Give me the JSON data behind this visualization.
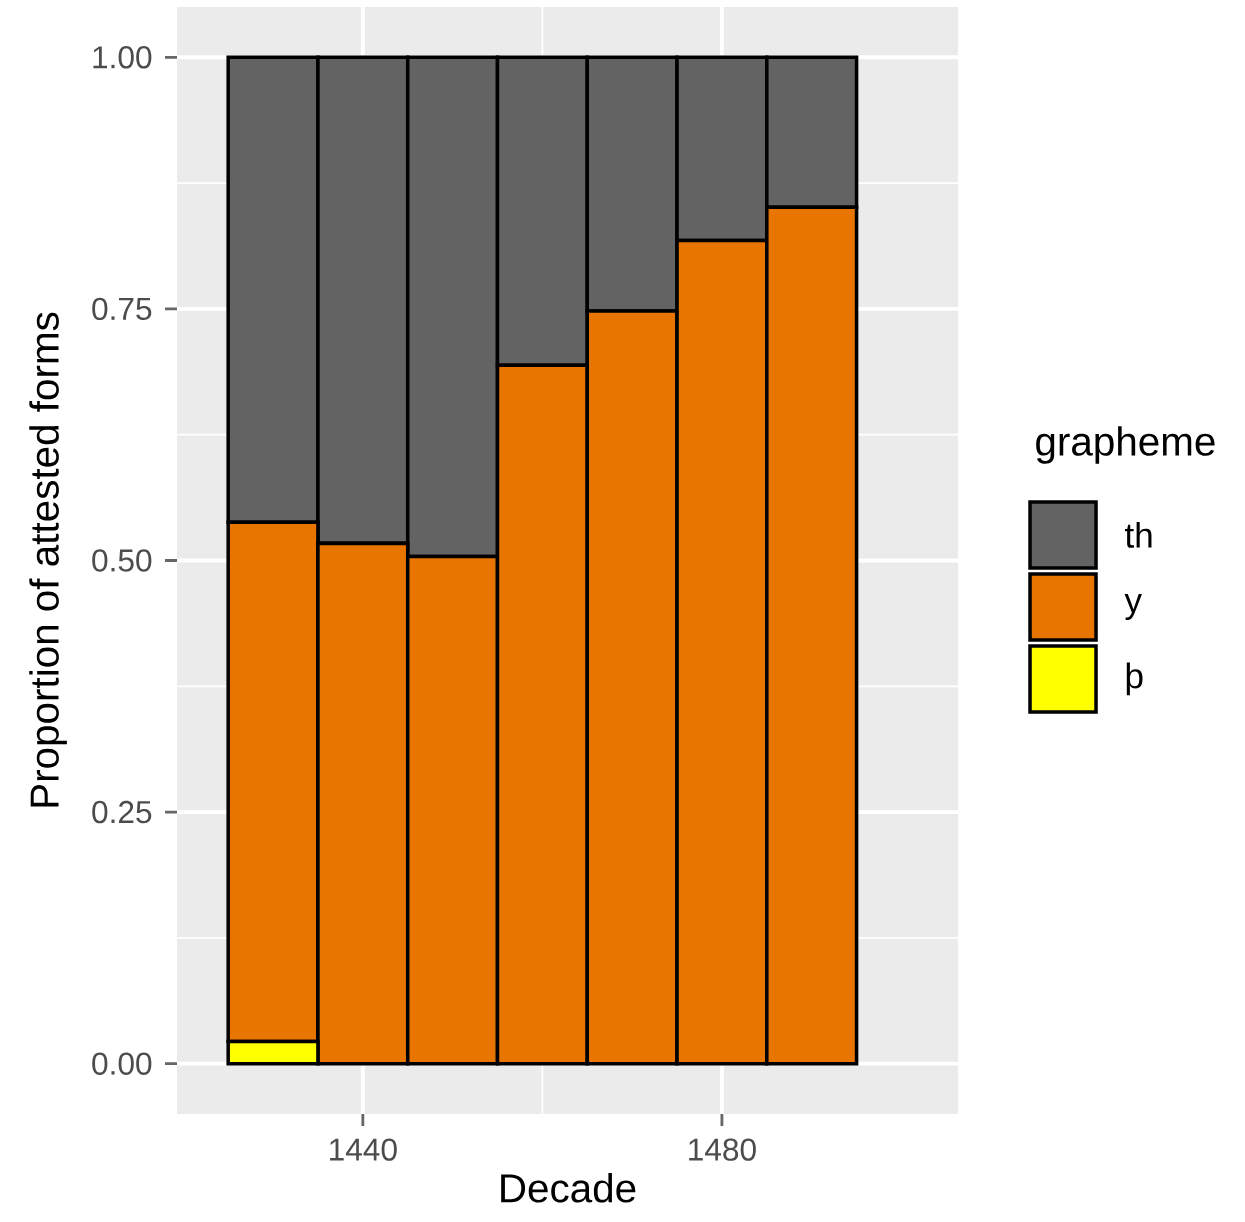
{
  "chart_data": {
    "type": "bar",
    "stacked": true,
    "xlabel": "Decade",
    "ylabel": "Proportion of attested forms",
    "legend_title": "grapheme",
    "legend": "right",
    "grid": true,
    "x": [
      1430,
      1440,
      1450,
      1460,
      1470,
      1480,
      1490
    ],
    "xlim": [
      1419.3,
      1506.3
    ],
    "xticks": [
      1440,
      1480
    ],
    "ylim": [
      -0.05,
      1.05
    ],
    "yticks": [
      {
        "value": 0,
        "label": "0.00"
      },
      {
        "value": 0.25,
        "label": "0.25"
      },
      {
        "value": 0.5,
        "label": "0.50"
      },
      {
        "value": 0.75,
        "label": "0.75"
      },
      {
        "value": 1,
        "label": "1.00"
      }
    ],
    "series": [
      {
        "name": "þ",
        "color": "#ffff00",
        "values": [
          0.022,
          null,
          null,
          null,
          null,
          null,
          null
        ]
      },
      {
        "name": "y",
        "color": "#e87500",
        "values": [
          0.516,
          0.517,
          0.504,
          0.694,
          0.748,
          0.818,
          0.851
        ]
      },
      {
        "name": "th",
        "color": "#636363",
        "values": [
          0.462,
          0.483,
          0.496,
          0.306,
          0.252,
          0.182,
          0.149
        ]
      }
    ]
  }
}
